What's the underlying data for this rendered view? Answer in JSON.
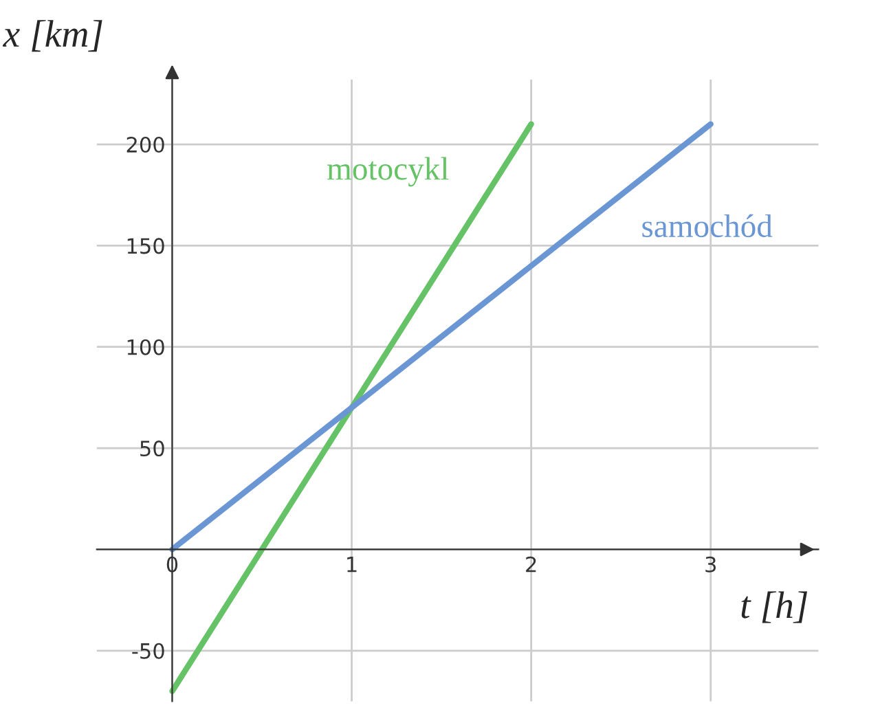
{
  "chart_data": {
    "type": "line",
    "xlabel": "t [h]",
    "ylabel": "x [km]",
    "series": [
      {
        "name": "motocykl",
        "color": "#66c266",
        "x": [
          0,
          2
        ],
        "values": [
          -70,
          210
        ]
      },
      {
        "name": "samochód",
        "color": "#6a96d4",
        "x": [
          0,
          3
        ],
        "values": [
          0,
          210
        ]
      }
    ],
    "xlim": [
      -0.42,
      3.6
    ],
    "ylim": [
      -75,
      232
    ],
    "xticks": [
      0,
      1,
      2,
      3
    ],
    "yticks": [
      -50,
      {
        "value": 0,
        "label": null
      },
      50,
      100,
      150,
      200
    ],
    "grid": true,
    "legend": false,
    "marker": "none",
    "line_style": "solid"
  }
}
